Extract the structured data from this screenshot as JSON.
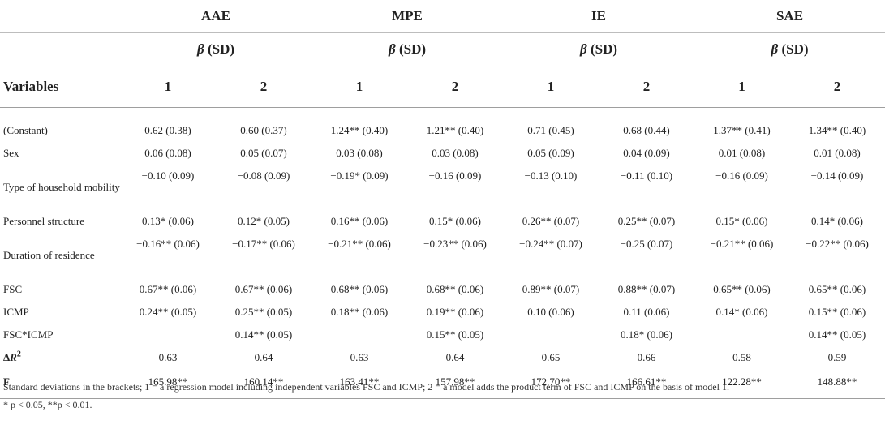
{
  "groups": [
    "AAE",
    "MPE",
    "IE",
    "SAE"
  ],
  "coef_label": "β (SD)",
  "variables_label": "Variables",
  "models": [
    "1",
    "2"
  ],
  "rows": [
    {
      "label": "(Constant)",
      "cells": [
        "0.62 (0.38)",
        "0.60 (0.37)",
        "1.24** (0.40)",
        "1.21** (0.40)",
        "0.71 (0.45)",
        "0.68 (0.44)",
        "1.37** (0.41)",
        "1.34** (0.40)"
      ]
    },
    {
      "label": "Sex",
      "cells": [
        "0.06 (0.08)",
        "0.05 (0.07)",
        "0.03 (0.08)",
        "0.03 (0.08)",
        "0.05 (0.09)",
        "0.04 (0.09)",
        "0.01 (0.08)",
        "0.01 (0.08)"
      ]
    },
    {
      "label": "Type of household mobility",
      "cells": [
        "−0.10 (0.09)",
        "−0.08 (0.09)",
        "−0.19* (0.09)",
        "−0.16 (0.09)",
        "−0.13 (0.10)",
        "−0.11 (0.10)",
        "−0.16 (0.09)",
        "−0.14 (0.09)"
      ]
    },
    {
      "label": "Personnel structure",
      "cells": [
        "0.13* (0.06)",
        "0.12* (0.05)",
        "0.16** (0.06)",
        "0.15* (0.06)",
        "0.26** (0.07)",
        "0.25** (0.07)",
        "0.15* (0.06)",
        "0.14* (0.06)"
      ]
    },
    {
      "label": "Duration of residence",
      "cells": [
        "−0.16** (0.06)",
        "−0.17** (0.06)",
        "−0.21** (0.06)",
        "−0.23** (0.06)",
        "−0.24** (0.07)",
        "−0.25 (0.07)",
        "−0.21** (0.06)",
        "−0.22** (0.06)"
      ]
    },
    {
      "label": "FSC",
      "cells": [
        "0.67** (0.06)",
        "0.67** (0.06)",
        "0.68** (0.06)",
        "0.68** (0.06)",
        "0.89** (0.07)",
        "0.88** (0.07)",
        "0.65** (0.06)",
        "0.65** (0.06)"
      ]
    },
    {
      "label": "ICMP",
      "cells": [
        "0.24** (0.05)",
        "0.25** (0.05)",
        "0.18** (0.06)",
        "0.19** (0.06)",
        "0.10 (0.06)",
        "0.11 (0.06)",
        "0.14* (0.06)",
        "0.15** (0.06)"
      ]
    },
    {
      "label": "FSC*ICMP",
      "cells": [
        "",
        "0.14** (0.05)",
        "",
        "0.15** (0.05)",
        "",
        "0.18* (0.06)",
        "",
        "0.14** (0.05)"
      ]
    },
    {
      "label": "ΔR2",
      "cells": [
        "0.63",
        "0.64",
        "0.63",
        "0.64",
        "0.65",
        "0.66",
        "0.58",
        "0.59"
      ]
    },
    {
      "label": "F",
      "cells": [
        "165.98**",
        "160.14**",
        "163.41**",
        "157.98**",
        "172.70**",
        "166.61**",
        "122.28**",
        "148.88**"
      ]
    }
  ],
  "notes": {
    "line1": "Standard deviations in the brackets; 1 = a regression model including independent variables FSC and ICMP; 2 = a model adds the product term of FSC and ICMP on the basis of model 1.",
    "line2": "* p < 0.05, **p < 0.01."
  }
}
